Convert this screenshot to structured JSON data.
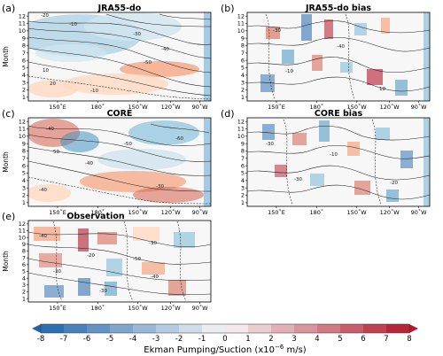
{
  "figure": {
    "colorbar": {
      "ticks": [
        "-8",
        "-7",
        "-6",
        "-5",
        "-4",
        "-3",
        "-2",
        "-1",
        "0",
        "1",
        "2",
        "3",
        "4",
        "5",
        "6",
        "7",
        "8"
      ],
      "label": "Ekman Pumping/Suction (x10",
      "label_exp": "−6",
      "label_unit": " m/s)",
      "negative_color": "#2166ac",
      "neutral_color": "#f7f7f7",
      "positive_color": "#b2182b"
    },
    "month_axis_label": "Month",
    "month_ticks": [
      "1",
      "2",
      "3",
      "4",
      "5",
      "6",
      "7",
      "8",
      "9",
      "10",
      "11",
      "12"
    ],
    "lon_ticks": [
      "150˚E",
      "180˚",
      "150˚W",
      "120˚W",
      "90˚W"
    ]
  },
  "chart_data": [
    {
      "panel": "(a)",
      "title": "JRA55-do",
      "type": "heatmap",
      "ylabel": "Month",
      "contour_labels": [
        "-20",
        "-10",
        "-30",
        "-40",
        "-50",
        "10",
        "20",
        "-10"
      ]
    },
    {
      "panel": "(b)",
      "title": "JRA55-do bias",
      "type": "heatmap",
      "ylabel": "",
      "contour_labels": [
        "-30",
        "-40",
        "-10",
        "10"
      ]
    },
    {
      "panel": "(c)",
      "title": "CORE",
      "type": "heatmap",
      "ylabel": "Month",
      "contour_labels": [
        "-40",
        "-60",
        "-50",
        "50",
        "-40",
        "-30",
        "-40"
      ]
    },
    {
      "panel": "(d)",
      "title": "CORE bias",
      "type": "heatmap",
      "ylabel": "",
      "contour_labels": [
        "-30",
        "-10",
        "-30",
        "-20"
      ]
    },
    {
      "panel": "(e)",
      "title": "Observation",
      "type": "heatmap",
      "ylabel": "Month",
      "contour_labels": [
        "-40",
        "-30",
        "-20",
        "-50",
        "-30",
        "-40",
        "-30"
      ]
    }
  ]
}
